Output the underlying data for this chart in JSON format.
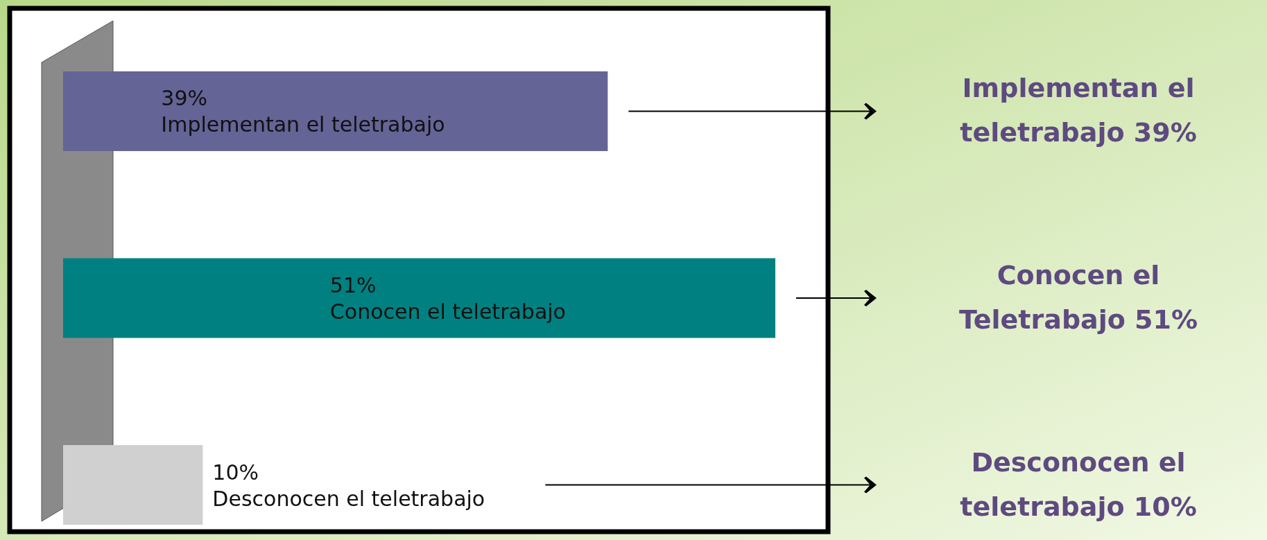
{
  "chart_data": {
    "type": "bar",
    "orientation": "horizontal",
    "categories": [
      "Implementan el teletrabajo",
      "Conocen el teletrabajo",
      "Desconocen el teletrabajo"
    ],
    "values": [
      39,
      51,
      10
    ],
    "colors": [
      "#646496",
      "#008080",
      "#d0d0d0"
    ],
    "value_labels": [
      "39%",
      "51%",
      "10%"
    ],
    "annotations": [
      "Implementan el teletrabajo 39%",
      "Conocen el Teletrabajo 51%",
      "Desconocen el teletrabajo 10%"
    ]
  }
}
